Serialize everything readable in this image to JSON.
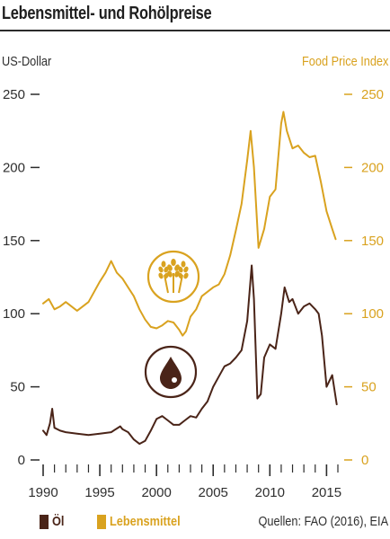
{
  "title": "Lebensmittel- und Rohölpreise",
  "left_axis_label": "US-Dollar",
  "right_axis_label": "Food Price Index",
  "legend": {
    "oil_label": "Öl",
    "food_label": "Lebensmittel"
  },
  "source": "Quellen: FAO (2016), EIA",
  "colors": {
    "oil": "#4a2418",
    "food": "#d9a21f",
    "axis": "#2b2b2b"
  },
  "icons": [
    "wheat-icon",
    "oil-drop-icon"
  ],
  "chart_data": {
    "type": "line",
    "x_ticks": [
      1990,
      1995,
      2000,
      2005,
      2010,
      2015
    ],
    "xlim": [
      1990,
      2016
    ],
    "y_ticks": [
      0,
      50,
      100,
      150,
      200,
      250
    ],
    "ylim": [
      0,
      250
    ],
    "left_axis_label": "US-Dollar",
    "right_axis_label": "Food Price Index",
    "series": [
      {
        "name": "Öl",
        "color": "#4a2418",
        "x": [
          1990,
          1990.3,
          1990.6,
          1990.8,
          1991,
          1991.5,
          1992,
          1993,
          1994,
          1995,
          1996,
          1996.8,
          1997,
          1997.5,
          1998,
          1998.5,
          1999,
          1999.5,
          2000,
          2000.5,
          2001,
          2001.5,
          2002,
          2002.5,
          2003,
          2003.5,
          2004,
          2004.5,
          2005,
          2005.5,
          2006,
          2006.5,
          2007,
          2007.5,
          2008,
          2008.4,
          2008.6,
          2008.9,
          2009.2,
          2009.5,
          2010,
          2010.5,
          2011,
          2011.3,
          2011.7,
          2012,
          2012.5,
          2013,
          2013.5,
          2014,
          2014.3,
          2014.6,
          2015,
          2015.5,
          2015.9
        ],
        "values": [
          20,
          17,
          25,
          35,
          22,
          20,
          19,
          18,
          17,
          18,
          19,
          23,
          21,
          19,
          14,
          11,
          13,
          20,
          28,
          30,
          27,
          24,
          24,
          27,
          30,
          29,
          35,
          40,
          50,
          57,
          64,
          66,
          70,
          75,
          95,
          133,
          110,
          42,
          45,
          70,
          79,
          76,
          100,
          118,
          108,
          110,
          100,
          105,
          107,
          103,
          100,
          85,
          50,
          58,
          38
        ]
      },
      {
        "name": "Lebensmittel",
        "color": "#d9a21f",
        "x": [
          1990,
          1990.5,
          1991,
          1991.5,
          1992,
          1993,
          1994,
          1994.5,
          1995,
          1995.5,
          1996,
          1996.5,
          1997,
          1997.5,
          1998,
          1998.5,
          1999,
          1999.5,
          2000,
          2000.5,
          2001,
          2001.5,
          2002,
          2002.3,
          2002.6,
          2003,
          2003.5,
          2004,
          2004.5,
          2005,
          2005.5,
          2006,
          2006.5,
          2007,
          2007.5,
          2008,
          2008.3,
          2008.6,
          2009,
          2009.5,
          2010,
          2010.5,
          2011,
          2011.2,
          2011.5,
          2012,
          2012.5,
          2013,
          2013.5,
          2014,
          2014.5,
          2015,
          2015.5,
          2015.8
        ],
        "values": [
          107,
          110,
          103,
          105,
          108,
          102,
          108,
          115,
          122,
          128,
          136,
          128,
          124,
          118,
          112,
          103,
          96,
          91,
          90,
          92,
          95,
          94,
          89,
          85,
          88,
          98,
          103,
          112,
          115,
          118,
          120,
          127,
          140,
          157,
          175,
          205,
          225,
          200,
          145,
          158,
          180,
          185,
          230,
          238,
          225,
          213,
          215,
          210,
          207,
          208,
          190,
          170,
          158,
          151
        ]
      }
    ]
  }
}
